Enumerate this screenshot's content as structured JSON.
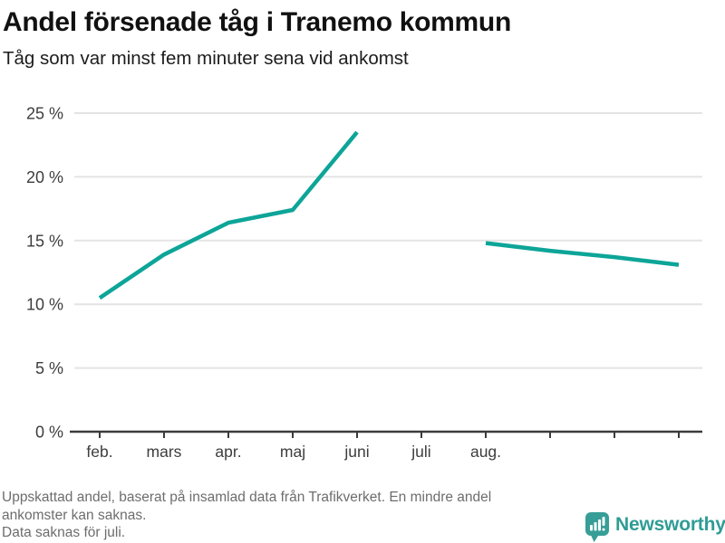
{
  "header": {
    "title": "Andel försenade tåg i Tranemo kommun",
    "subtitle": "Tåg som var minst fem minuter sena vid ankomst"
  },
  "chart_data": {
    "type": "line",
    "title": "Andel försenade tåg i Tranemo kommun",
    "subtitle": "Tåg som var minst fem minuter sena vid ankomst",
    "unit": "%",
    "categories": [
      "feb.",
      "mars",
      "apr.",
      "maj",
      "juni",
      "juli",
      "aug.",
      "",
      "",
      ""
    ],
    "series": [
      {
        "name": "Andel försenade tåg",
        "values": [
          10.5,
          13.9,
          16.4,
          17.4,
          23.5,
          null,
          14.8,
          14.2,
          13.7,
          13.1
        ],
        "color": "#0da598"
      }
    ],
    "gap_note": "Data saknas för juli (lucka i linjen mellan juni och aug.)",
    "ylim": [
      0,
      25
    ],
    "yticks": [
      {
        "value": 0,
        "label": "0 %"
      },
      {
        "value": 5,
        "label": "5 %"
      },
      {
        "value": 10,
        "label": "10 %"
      },
      {
        "value": 15,
        "label": "15 %"
      },
      {
        "value": 20,
        "label": "20 %"
      },
      {
        "value": 25,
        "label": "25 %"
      }
    ],
    "grid": "horizontal",
    "legend": "none"
  },
  "footer": {
    "lines": [
      "Uppskattad andel, baserat på insamlad data från Trafikverket. En mindre andel",
      "ankomster kan saknas.",
      "Data saknas för juli."
    ]
  },
  "branding": {
    "name": "Newsworthy",
    "icon": "bar-chart-speech-bubble",
    "icon_color": "#379e97",
    "text_color": "#2f9c95"
  },
  "colors": {
    "line": "#0da598",
    "grid": "#e4e4e4",
    "axis": "#3b3b3b",
    "tick_text": "#3d3d3d",
    "title_text": "#111111",
    "footer_text": "#6d6d6d",
    "background": "#ffffff"
  }
}
